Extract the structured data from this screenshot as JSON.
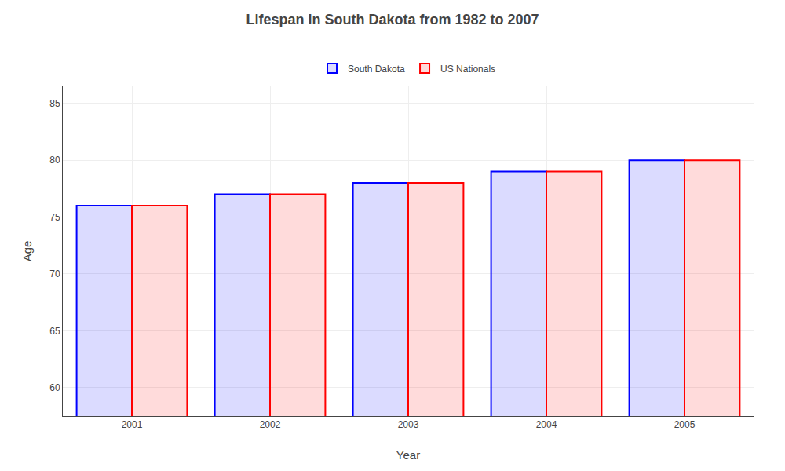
{
  "chart_data": {
    "type": "bar",
    "title": "Lifespan in South Dakota from 1982 to 2007",
    "xlabel": "Year",
    "ylabel": "Age",
    "categories": [
      "2001",
      "2002",
      "2003",
      "2004",
      "2005"
    ],
    "series": [
      {
        "name": "South Dakota",
        "color": "#0000ff",
        "values": [
          76,
          77,
          78,
          79,
          80
        ]
      },
      {
        "name": "US Nationals",
        "color": "#ff0000",
        "values": [
          76,
          77,
          78,
          79,
          80
        ]
      }
    ],
    "ylim": [
      57.5,
      86.5
    ],
    "yticks": [
      60,
      65,
      70,
      75,
      80,
      85
    ],
    "grid": true,
    "legend": "top"
  }
}
